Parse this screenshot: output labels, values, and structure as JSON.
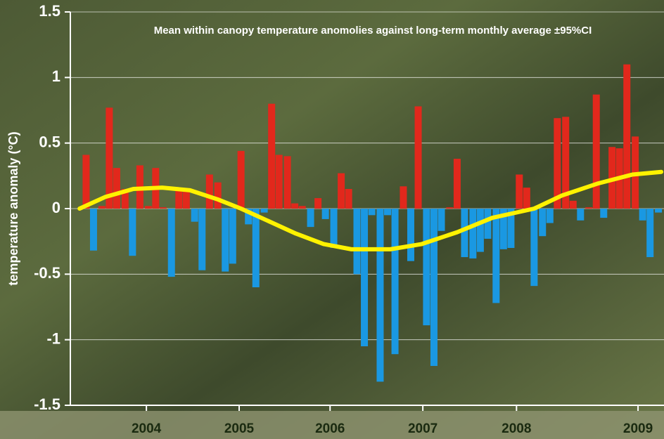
{
  "chart_data": {
    "type": "bar",
    "title": "Mean within canopy temperature anomolies against long-term monthly average ±95%CI",
    "y_label": "temperature anomaly (°C)",
    "x": [
      2003.85,
      2003.93,
      2004.02,
      2004.1,
      2004.18,
      2004.27,
      2004.35,
      2004.43,
      2004.52,
      2004.6,
      2004.68,
      2004.77,
      2004.85,
      2004.93,
      2005.02,
      2005.1,
      2005.18,
      2005.27,
      2005.35,
      2005.43,
      2005.52,
      2005.6,
      2005.68,
      2005.77,
      2005.85,
      2005.93,
      2006.02,
      2006.1,
      2006.18,
      2006.27,
      2006.35,
      2006.43,
      2006.52,
      2006.6,
      2006.68,
      2006.77,
      2006.85,
      2006.93,
      2007.02,
      2007.1,
      2007.18,
      2007.27,
      2007.35,
      2007.43,
      2007.52,
      2007.6,
      2007.68,
      2007.77,
      2007.85,
      2007.93,
      2008.02,
      2008.1,
      2008.18,
      2008.27,
      2008.35,
      2008.43,
      2008.52,
      2008.6,
      2008.68,
      2008.77,
      2008.85,
      2008.93,
      2009.02,
      2009.1,
      2009.18,
      2009.27,
      2009.35,
      2009.43,
      2009.52,
      2009.6,
      2009.68,
      2009.77,
      2009.85,
      2009.93,
      2010.02
    ],
    "values": [
      0.41,
      -0.32,
      0.02,
      0.77,
      0.31,
      0.15,
      -0.36,
      0.33,
      0.02,
      0.31,
      0.01,
      -0.52,
      0.16,
      0.15,
      -0.1,
      -0.47,
      0.26,
      0.2,
      -0.48,
      -0.42,
      0.44,
      -0.12,
      -0.6,
      -0.03,
      0.8,
      0.41,
      0.4,
      0.04,
      0.02,
      -0.14,
      0.08,
      -0.08,
      -0.3,
      0.27,
      0.15,
      -0.5,
      -1.05,
      -0.05,
      -1.32,
      -0.05,
      -1.11,
      0.17,
      -0.4,
      0.78,
      -0.89,
      -1.2,
      -0.17,
      0.01,
      0.38,
      -0.37,
      -0.38,
      -0.33,
      -0.23,
      -0.72,
      -0.31,
      -0.3,
      0.26,
      0.16,
      -0.59,
      -0.21,
      -0.11,
      0.69,
      0.7,
      0.06,
      -0.09,
      0.01,
      0.87,
      -0.07,
      0.47,
      0.46,
      1.1,
      0.55,
      -0.09,
      -0.37,
      -0.03
    ],
    "positive_color": "#e2281c",
    "negative_color": "#1a98e2",
    "trend": {
      "type": "line",
      "color": "#fff200",
      "x": [
        2003.78,
        2004.06,
        2004.36,
        2004.67,
        2004.97,
        2005.27,
        2005.52,
        2005.8,
        2006.11,
        2006.41,
        2006.71,
        2007.13,
        2007.47,
        2007.85,
        2008.23,
        2008.68,
        2008.98,
        2009.36,
        2009.74,
        2010.05
      ],
      "values": [
        0.0,
        0.09,
        0.15,
        0.16,
        0.14,
        0.07,
        0.0,
        -0.09,
        -0.19,
        -0.27,
        -0.31,
        -0.31,
        -0.27,
        -0.18,
        -0.07,
        0.0,
        0.1,
        0.19,
        0.26,
        0.28
      ]
    },
    "xlim": [
      2003.68,
      2010.08
    ],
    "xticks": [
      {
        "value": 2004.5,
        "label": "2004"
      },
      {
        "value": 2005.5,
        "label": "2005"
      },
      {
        "value": 2006.48,
        "label": "2006"
      },
      {
        "value": 2007.48,
        "label": "2007"
      },
      {
        "value": 2008.49,
        "label": "2008"
      },
      {
        "value": 2009.8,
        "label": "2009"
      }
    ],
    "ylim": [
      -1.5,
      1.5
    ],
    "yticks": [
      -1.5,
      -1,
      -0.5,
      0,
      0.5,
      1,
      1.5
    ],
    "grid": true
  }
}
